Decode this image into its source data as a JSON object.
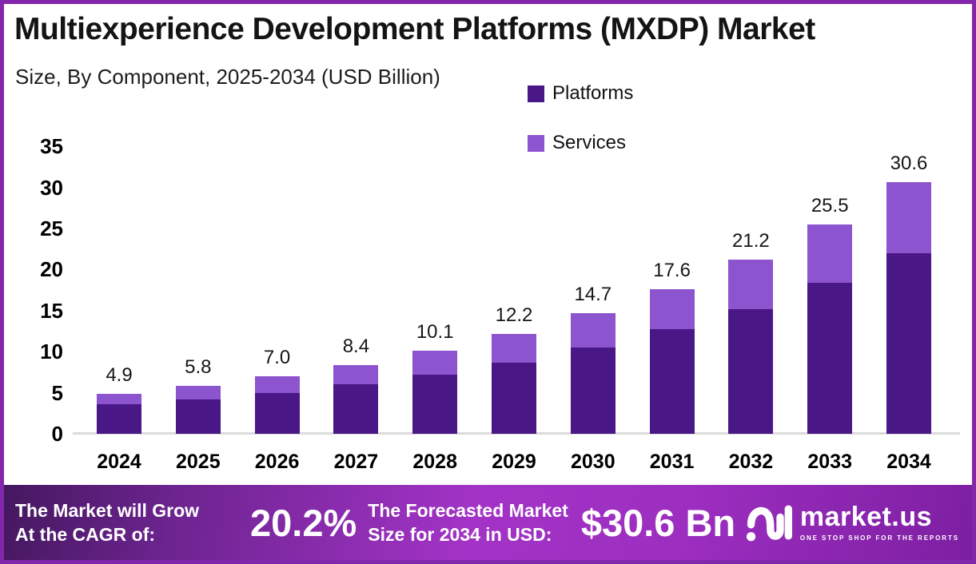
{
  "header": {
    "title": "Multiexperience Development Platforms (MXDP) Market",
    "subtitle": "Size, By Component, 2025-2034 (USD Billion)"
  },
  "colors": {
    "platforms": "#4A1786",
    "services": "#8C54CE",
    "border": "#8226AC",
    "baseline": "#DBDBDB"
  },
  "chart_data": {
    "type": "bar",
    "stacked": true,
    "title": "Multiexperience Development Platforms (MXDP) Market Size, By Component, 2025-2034 (USD Billion)",
    "categories": [
      "2024",
      "2025",
      "2026",
      "2027",
      "2028",
      "2029",
      "2030",
      "2031",
      "2032",
      "2033",
      "2034"
    ],
    "series": [
      {
        "name": "Platforms",
        "color": "#4A1786",
        "values": [
          3.6,
          4.2,
          5.0,
          6.0,
          7.2,
          8.7,
          10.5,
          12.7,
          15.2,
          18.4,
          22.0
        ]
      },
      {
        "name": "Services",
        "color": "#8C54CE",
        "values": [
          1.3,
          1.6,
          2.0,
          2.4,
          2.9,
          3.5,
          4.2,
          4.9,
          6.0,
          7.1,
          8.6
        ]
      }
    ],
    "totals": [
      4.9,
      5.8,
      7.0,
      8.4,
      10.1,
      12.2,
      14.7,
      17.6,
      21.2,
      25.5,
      30.6
    ],
    "total_labels": [
      "4.9",
      "5.8",
      "7.0",
      "8.4",
      "10.1",
      "12.2",
      "14.7",
      "17.6",
      "21.2",
      "25.5",
      "30.6"
    ],
    "xlabel": "",
    "ylabel": "",
    "y_ticks": [
      0,
      5,
      10,
      15,
      20,
      25,
      30,
      35
    ],
    "ylim": [
      0,
      35
    ],
    "grid": false,
    "legend_position": "top-right"
  },
  "footer": {
    "growth_text_line1": "The Market will Grow",
    "growth_text_line2": "At the CAGR of:",
    "cagr_value": "20.2%",
    "forecast_text_line1": "The Forecasted Market",
    "forecast_text_line2": "Size for 2034 in USD:",
    "forecast_value": "$30.6 Bn",
    "logo_text": "market.us",
    "logo_tagline": "ONE STOP SHOP FOR THE REPORTS"
  }
}
